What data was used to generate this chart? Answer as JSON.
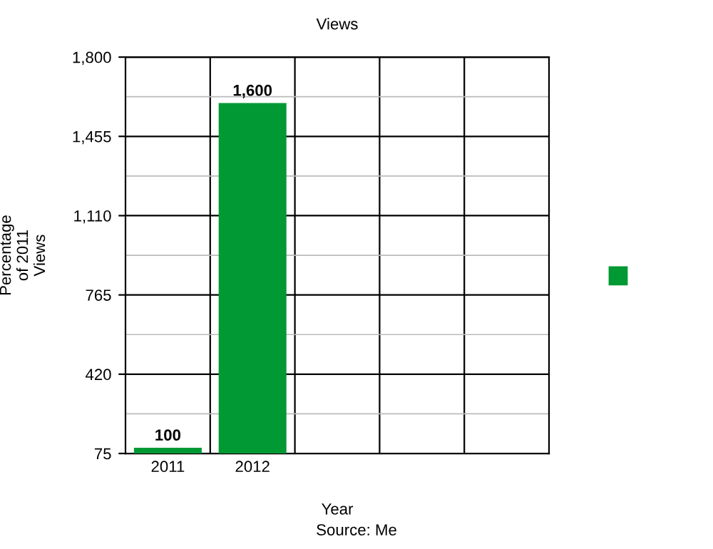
{
  "chart_data": {
    "type": "bar",
    "title": "Views",
    "xlabel": "Year",
    "ylabel": "Percentage\nof 2011\nViews",
    "categories": [
      "2011",
      "2012",
      null,
      null,
      null
    ],
    "series": [
      {
        "color": "#009933",
        "values": [
          100,
          1600,
          null,
          null,
          null
        ],
        "value_labels": [
          "100",
          "1,600",
          null,
          null,
          null
        ]
      }
    ],
    "ylim": [
      75,
      1800
    ],
    "yticks": [
      {
        "value": 75,
        "label": "75"
      },
      {
        "value": 420,
        "label": "420"
      },
      {
        "value": 765,
        "label": "765"
      },
      {
        "value": 1110,
        "label": "1,110"
      },
      {
        "value": 1455,
        "label": "1,455"
      },
      {
        "value": 1800,
        "label": "1,800"
      }
    ],
    "grid": true,
    "annotations": [
      "Source: Me"
    ]
  }
}
